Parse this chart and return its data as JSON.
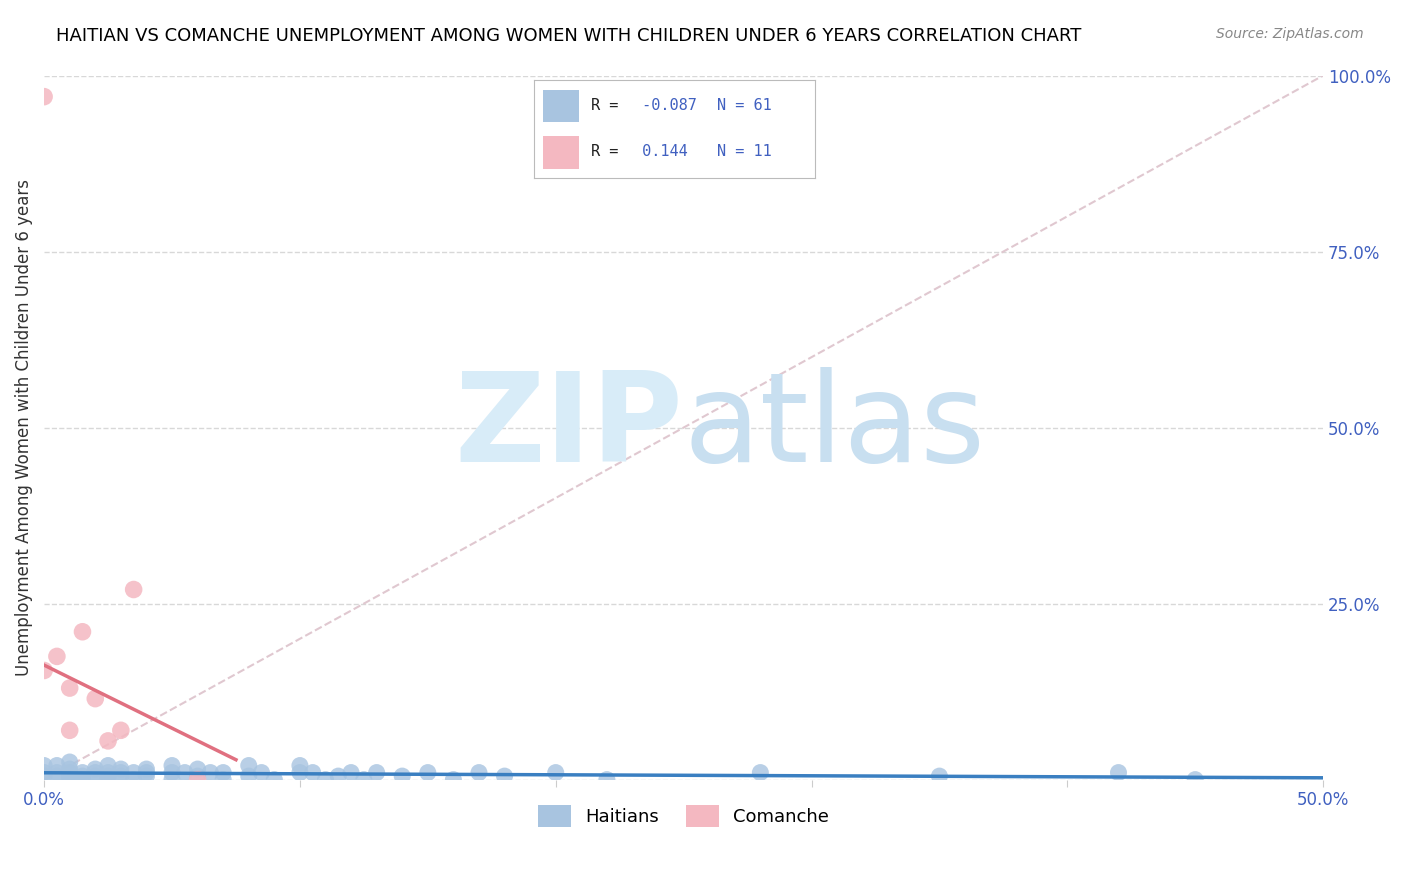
{
  "title": "HAITIAN VS COMANCHE UNEMPLOYMENT AMONG WOMEN WITH CHILDREN UNDER 6 YEARS CORRELATION CHART",
  "source": "Source: ZipAtlas.com",
  "ylabel": "Unemployment Among Women with Children Under 6 years",
  "xlim": [
    0.0,
    0.5
  ],
  "ylim": [
    0.0,
    1.0
  ],
  "xticks": [
    0.0,
    0.1,
    0.2,
    0.3,
    0.4,
    0.5
  ],
  "xticklabels": [
    "0.0%",
    "",
    "",
    "",
    "",
    "50.0%"
  ],
  "yticks": [
    0.0,
    0.25,
    0.5,
    0.75,
    1.0
  ],
  "yticklabels": [
    "",
    "25.0%",
    "50.0%",
    "75.0%",
    "100.0%"
  ],
  "haitian_color": "#a8c4e0",
  "comanche_color": "#f4b8c1",
  "haitian_trend_color": "#3a7fc1",
  "comanche_trend_color": "#e07080",
  "diagonal_color": "#e0c8d0",
  "diagonal_style": "--",
  "R_haitian": -0.087,
  "N_haitian": 61,
  "R_comanche": 0.144,
  "N_comanche": 11,
  "haitian_scatter": [
    [
      0.0,
      0.02
    ],
    [
      0.0,
      0.01
    ],
    [
      0.0,
      0.005
    ],
    [
      0.005,
      0.01
    ],
    [
      0.005,
      0.005
    ],
    [
      0.005,
      0.02
    ],
    [
      0.01,
      0.01
    ],
    [
      0.01,
      0.005
    ],
    [
      0.01,
      0.0
    ],
    [
      0.01,
      0.015
    ],
    [
      0.01,
      0.025
    ],
    [
      0.015,
      0.01
    ],
    [
      0.015,
      0.005
    ],
    [
      0.015,
      0.0
    ],
    [
      0.02,
      0.01
    ],
    [
      0.02,
      0.005
    ],
    [
      0.02,
      0.015
    ],
    [
      0.025,
      0.01
    ],
    [
      0.025,
      0.005
    ],
    [
      0.025,
      0.0
    ],
    [
      0.025,
      0.02
    ],
    [
      0.03,
      0.01
    ],
    [
      0.03,
      0.005
    ],
    [
      0.03,
      0.015
    ],
    [
      0.035,
      0.01
    ],
    [
      0.035,
      0.0
    ],
    [
      0.04,
      0.01
    ],
    [
      0.04,
      0.005
    ],
    [
      0.04,
      0.015
    ],
    [
      0.05,
      0.02
    ],
    [
      0.05,
      0.01
    ],
    [
      0.05,
      0.0
    ],
    [
      0.055,
      0.01
    ],
    [
      0.06,
      0.005
    ],
    [
      0.06,
      0.015
    ],
    [
      0.065,
      0.01
    ],
    [
      0.07,
      0.0
    ],
    [
      0.07,
      0.01
    ],
    [
      0.08,
      0.02
    ],
    [
      0.08,
      0.005
    ],
    [
      0.085,
      0.01
    ],
    [
      0.09,
      0.0
    ],
    [
      0.1,
      0.01
    ],
    [
      0.1,
      0.02
    ],
    [
      0.105,
      0.01
    ],
    [
      0.11,
      0.0
    ],
    [
      0.115,
      0.005
    ],
    [
      0.12,
      0.01
    ],
    [
      0.125,
      0.0
    ],
    [
      0.13,
      0.01
    ],
    [
      0.14,
      0.005
    ],
    [
      0.15,
      0.01
    ],
    [
      0.16,
      0.0
    ],
    [
      0.17,
      0.01
    ],
    [
      0.18,
      0.005
    ],
    [
      0.2,
      0.01
    ],
    [
      0.22,
      0.0
    ],
    [
      0.28,
      0.01
    ],
    [
      0.35,
      0.005
    ],
    [
      0.42,
      0.01
    ],
    [
      0.45,
      0.0
    ]
  ],
  "comanche_scatter": [
    [
      0.0,
      0.97
    ],
    [
      0.0,
      0.155
    ],
    [
      0.005,
      0.175
    ],
    [
      0.01,
      0.13
    ],
    [
      0.01,
      0.07
    ],
    [
      0.015,
      0.21
    ],
    [
      0.02,
      0.115
    ],
    [
      0.025,
      0.055
    ],
    [
      0.03,
      0.07
    ],
    [
      0.035,
      0.27
    ],
    [
      0.06,
      0.0
    ]
  ],
  "comanche_trend_x": [
    0.0,
    0.075
  ],
  "watermark_top": "ZIP",
  "watermark_bottom": "atlas",
  "watermark_color": "#d8ecf8",
  "legend_R_color": "#4060c0",
  "tick_color": "#4060c0",
  "legend_labels": [
    "Haitians",
    "Comanche"
  ],
  "background_color": "#ffffff",
  "grid_color": "#d8d8d8"
}
